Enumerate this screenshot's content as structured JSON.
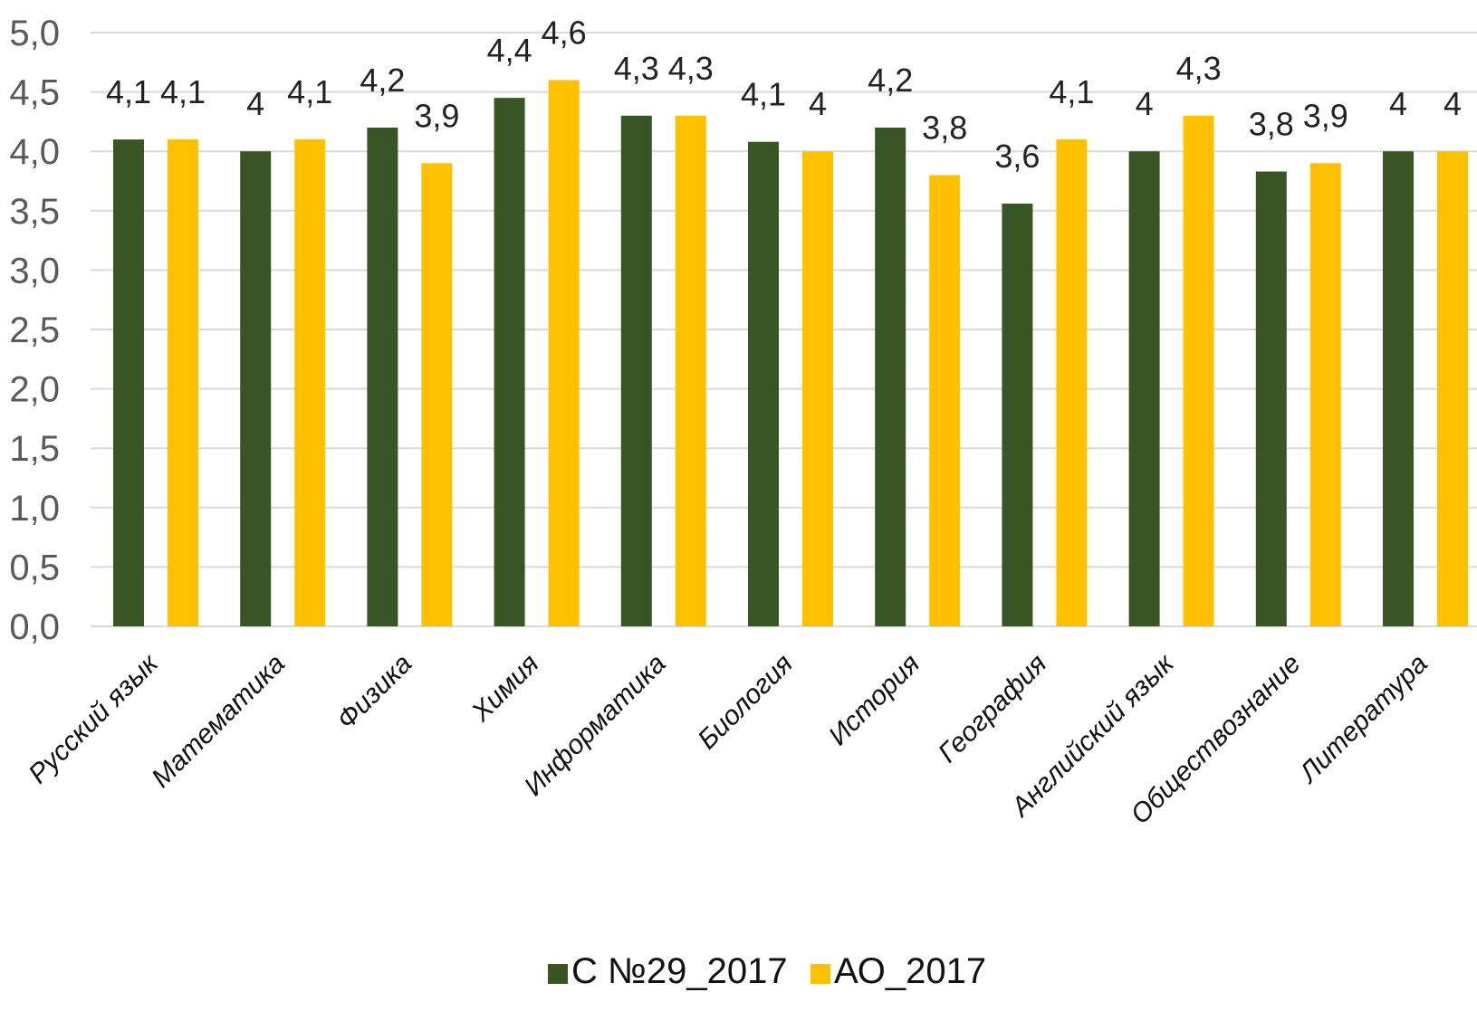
{
  "chart_data": {
    "type": "bar",
    "categories": [
      "Русский язык",
      "Математика",
      "Физика",
      "Химия",
      "Информатика",
      "Биология",
      "История",
      "География",
      "Английский язык",
      "Обществознание",
      "Литература"
    ],
    "series": [
      {
        "name": "С №29_2017",
        "color": "#375623",
        "values": [
          4.1,
          4.0,
          4.2,
          4.45,
          4.3,
          4.08,
          4.2,
          3.56,
          4.0,
          3.83,
          4.0
        ],
        "labels": [
          "4,1",
          "4",
          "4,2",
          "4,4",
          "4,3",
          "4,1",
          "4,2",
          "3,6",
          "4",
          "3,8",
          "4"
        ]
      },
      {
        "name": "АО_2017",
        "color": "#ffc000",
        "values": [
          4.1,
          4.1,
          3.9,
          4.6,
          4.3,
          4.0,
          3.8,
          4.1,
          4.3,
          3.9,
          4.0
        ],
        "labels": [
          "4,1",
          "4,1",
          "3,9",
          "4,6",
          "4,3",
          "4",
          "3,8",
          "4,1",
          "4,3",
          "3,9",
          "4"
        ]
      }
    ],
    "ylim": [
      0,
      5
    ],
    "yticks": [
      "0,0",
      "0,5",
      "1,0",
      "1,5",
      "2,0",
      "2,5",
      "3,0",
      "3,5",
      "4,0",
      "4,5",
      "5,0"
    ],
    "title": "",
    "xlabel": "",
    "ylabel": "",
    "grid": true,
    "legend_position": "bottom"
  }
}
